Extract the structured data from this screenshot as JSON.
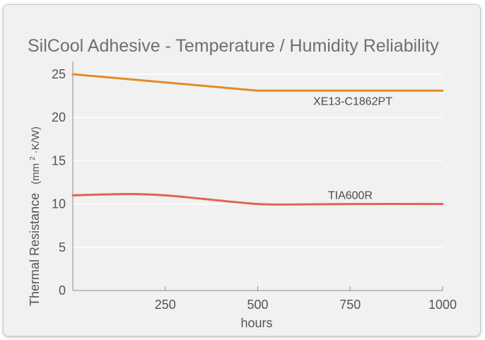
{
  "chart_data": {
    "type": "line",
    "title": "SilCool Adhesive - Temperature / Humidity Reliability",
    "xlabel": "hours",
    "ylabel": "Thermal Resistance",
    "ylabel_unit_prefix": "(mm",
    "ylabel_unit_sup": "2",
    "ylabel_unit_suffix": "·K/W)",
    "xlim": [
      0,
      1000
    ],
    "ylim": [
      0,
      25
    ],
    "x_ticks": [
      250,
      500,
      750,
      1000
    ],
    "y_ticks": [
      0,
      5,
      10,
      15,
      20,
      25
    ],
    "grid": "horizontal",
    "legend": "inline labels",
    "series": [
      {
        "name": "XE13-C1862PT",
        "color": "#e38c25",
        "x": [
          0,
          500,
          1000
        ],
        "y": [
          25,
          23.1,
          23.1
        ]
      },
      {
        "name": "TIA600R",
        "color": "#e06456",
        "x": [
          0,
          150,
          250,
          350,
          500,
          600,
          750,
          1000
        ],
        "y": [
          11,
          11.15,
          11.0,
          10.6,
          10.0,
          9.95,
          10.0,
          10.0
        ]
      }
    ]
  }
}
